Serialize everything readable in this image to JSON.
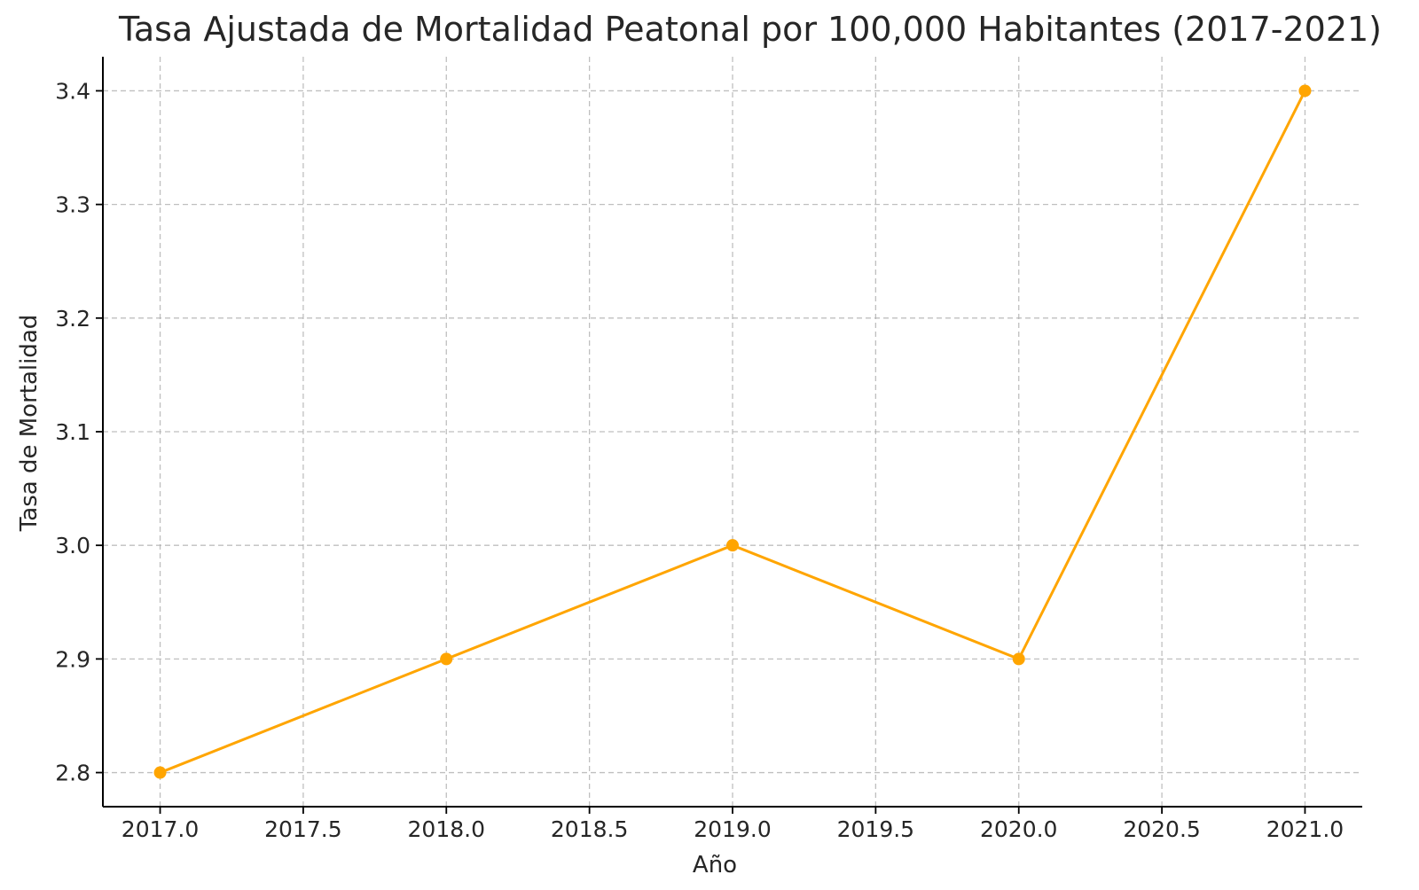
{
  "chart_data": {
    "type": "line",
    "title": "Tasa Ajustada de Mortalidad Peatonal por 100,000 Habitantes (2017-2021)",
    "xlabel": "Año",
    "ylabel": "Tasa de Mortalidad",
    "x": [
      2017,
      2018,
      2019,
      2020,
      2021
    ],
    "series": [
      {
        "values": [
          2.8,
          2.9,
          3.0,
          2.9,
          3.4
        ],
        "color": "#FFA500",
        "marker": "circle"
      }
    ],
    "xlim": [
      2016.8,
      2021.2
    ],
    "ylim": [
      2.77,
      3.43
    ],
    "xticks": [
      2017.0,
      2017.5,
      2018.0,
      2018.5,
      2019.0,
      2019.5,
      2020.0,
      2020.5,
      2021.0
    ],
    "xtick_labels": [
      "2017.0",
      "2017.5",
      "2018.0",
      "2018.5",
      "2019.0",
      "2019.5",
      "2020.0",
      "2020.5",
      "2021.0"
    ],
    "yticks": [
      2.8,
      2.9,
      3.0,
      3.1,
      3.2,
      3.3,
      3.4
    ],
    "ytick_labels": [
      "2.8",
      "2.9",
      "3.0",
      "3.1",
      "3.2",
      "3.3",
      "3.4"
    ],
    "grid": true,
    "grid_style": "dashed",
    "legend": "none"
  }
}
